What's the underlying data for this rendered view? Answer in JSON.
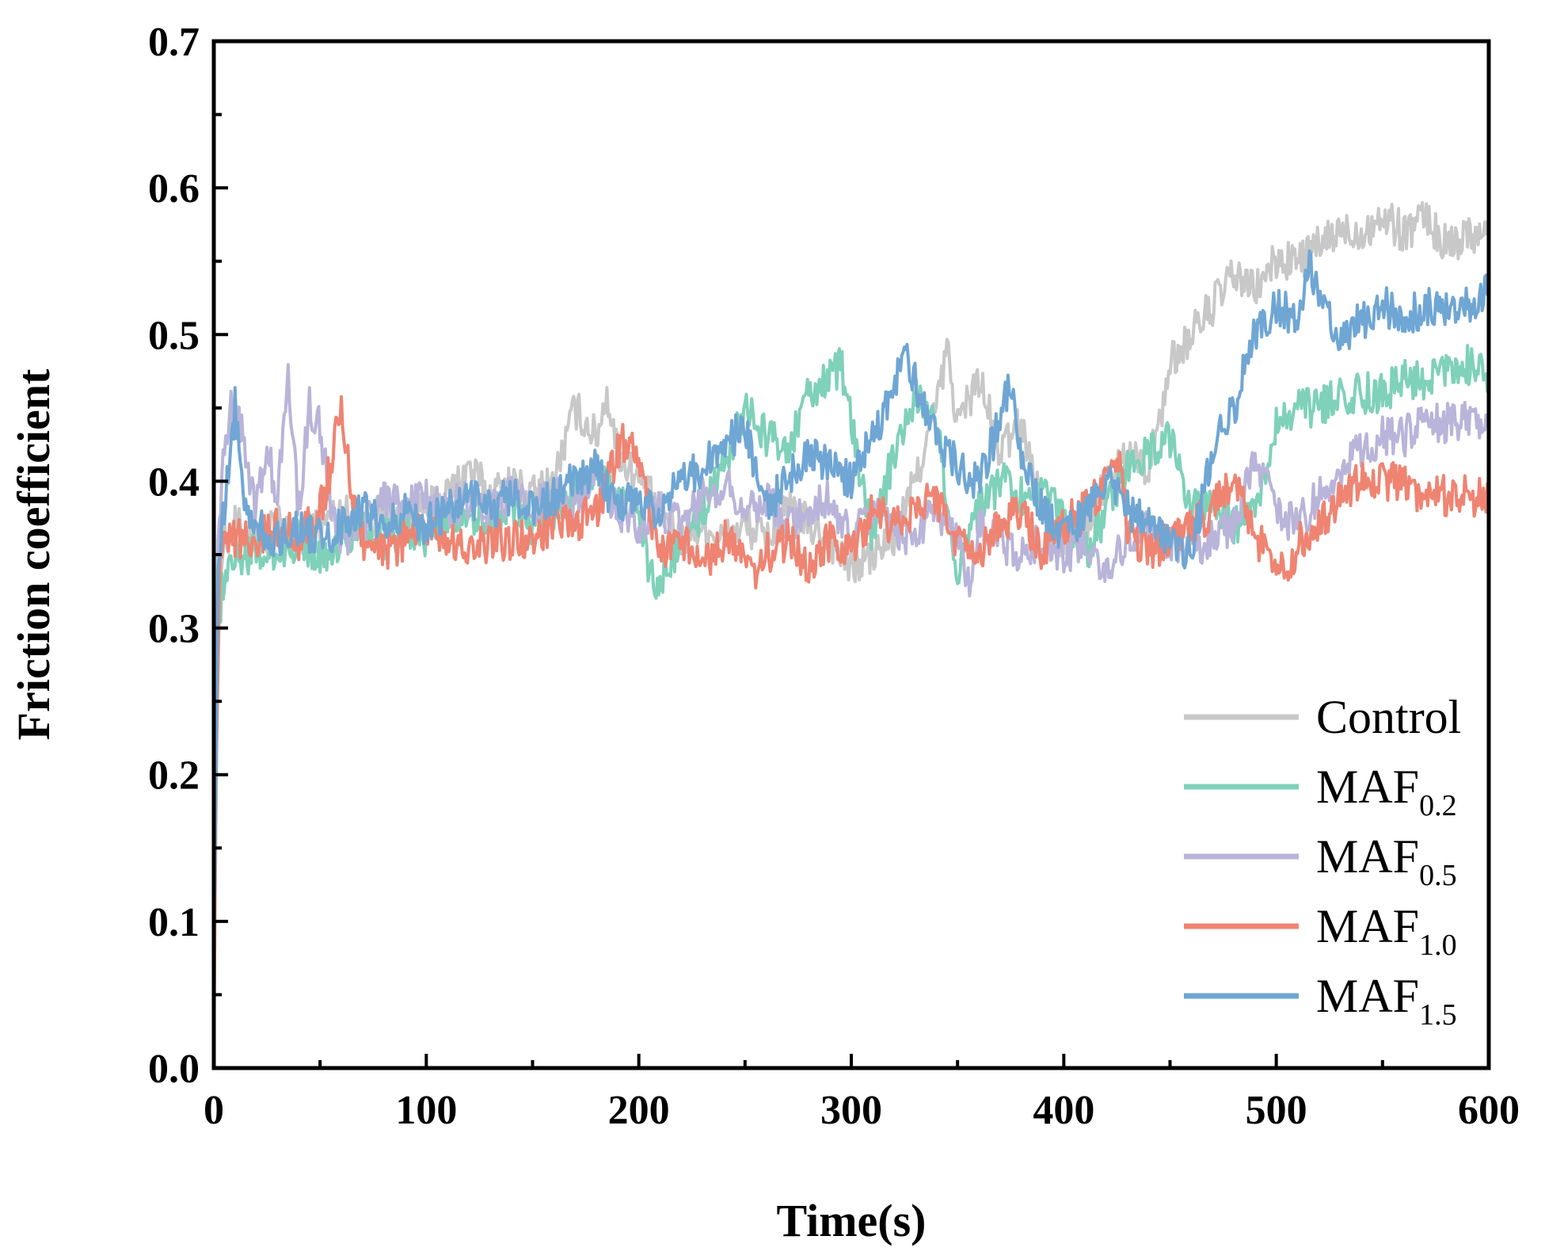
{
  "chart_data": {
    "type": "line",
    "title": "",
    "xlabel": "Time(s)",
    "ylabel": "Friction coefficient",
    "xlim": [
      0,
      600
    ],
    "ylim": [
      0,
      0.7
    ],
    "x_ticks": [
      0,
      100,
      200,
      300,
      400,
      500,
      600
    ],
    "x_tick_labels": [
      "0",
      "100",
      "200",
      "300",
      "400",
      "500",
      "600"
    ],
    "y_ticks": [
      0,
      0.1,
      0.2,
      0.3,
      0.4,
      0.5,
      0.6,
      0.7
    ],
    "y_tick_labels": [
      "0.0",
      "0.1",
      "0.2",
      "0.3",
      "0.4",
      "0.5",
      "0.6",
      "0.7"
    ],
    "grid": false,
    "legend_position": "bottom-right",
    "series": [
      {
        "name": "Control",
        "label_main": "Control",
        "label_sub": "",
        "color": "#c8c8c8",
        "x": [
          0,
          2,
          5,
          10,
          20,
          30,
          40,
          50,
          60,
          70,
          80,
          90,
          100,
          110,
          120,
          130,
          140,
          150,
          160,
          170,
          180,
          185,
          190,
          200,
          210,
          220,
          230,
          240,
          250,
          260,
          270,
          280,
          290,
          300,
          310,
          320,
          330,
          340,
          345,
          350,
          360,
          370,
          380,
          390,
          400,
          410,
          420,
          430,
          440,
          445,
          450,
          460,
          470,
          480,
          490,
          500,
          510,
          520,
          530,
          540,
          550,
          560,
          570,
          580,
          590,
          600
        ],
        "y": [
          0.02,
          0.33,
          0.36,
          0.37,
          0.36,
          0.37,
          0.36,
          0.37,
          0.38,
          0.37,
          0.38,
          0.37,
          0.38,
          0.39,
          0.41,
          0.39,
          0.4,
          0.39,
          0.4,
          0.45,
          0.43,
          0.46,
          0.42,
          0.4,
          0.38,
          0.36,
          0.37,
          0.36,
          0.37,
          0.36,
          0.38,
          0.37,
          0.36,
          0.34,
          0.35,
          0.36,
          0.4,
          0.45,
          0.49,
          0.44,
          0.47,
          0.42,
          0.44,
          0.38,
          0.36,
          0.37,
          0.4,
          0.42,
          0.41,
          0.44,
          0.48,
          0.5,
          0.52,
          0.54,
          0.53,
          0.55,
          0.55,
          0.56,
          0.57,
          0.57,
          0.58,
          0.57,
          0.58,
          0.56,
          0.57,
          0.57
        ]
      },
      {
        "name": "MAF0.2",
        "label_main": "MAF",
        "label_sub": "0.2",
        "color": "#7fd1b9",
        "x": [
          0,
          2,
          5,
          10,
          20,
          30,
          40,
          50,
          60,
          70,
          80,
          90,
          100,
          110,
          120,
          130,
          140,
          150,
          160,
          170,
          180,
          190,
          200,
          205,
          210,
          220,
          230,
          240,
          250,
          260,
          270,
          280,
          290,
          295,
          300,
          310,
          320,
          330,
          340,
          350,
          360,
          370,
          380,
          390,
          400,
          410,
          420,
          430,
          440,
          450,
          460,
          470,
          480,
          490,
          500,
          510,
          520,
          530,
          540,
          550,
          560,
          570,
          580,
          590,
          600
        ],
        "y": [
          0.05,
          0.3,
          0.34,
          0.35,
          0.35,
          0.35,
          0.36,
          0.35,
          0.36,
          0.37,
          0.36,
          0.37,
          0.36,
          0.37,
          0.38,
          0.37,
          0.38,
          0.37,
          0.38,
          0.39,
          0.4,
          0.39,
          0.38,
          0.34,
          0.33,
          0.36,
          0.38,
          0.41,
          0.45,
          0.43,
          0.42,
          0.46,
          0.47,
          0.48,
          0.44,
          0.36,
          0.42,
          0.46,
          0.44,
          0.34,
          0.38,
          0.4,
          0.39,
          0.4,
          0.37,
          0.35,
          0.38,
          0.41,
          0.42,
          0.43,
          0.38,
          0.39,
          0.37,
          0.38,
          0.44,
          0.45,
          0.45,
          0.46,
          0.46,
          0.46,
          0.47,
          0.47,
          0.48,
          0.48,
          0.47
        ]
      },
      {
        "name": "MAF0.5",
        "label_main": "MAF",
        "label_sub": "0.5",
        "color": "#b9b4d9",
        "x": [
          0,
          2,
          5,
          10,
          15,
          20,
          25,
          30,
          35,
          40,
          45,
          50,
          55,
          60,
          70,
          80,
          90,
          100,
          110,
          120,
          130,
          140,
          150,
          160,
          170,
          180,
          190,
          200,
          210,
          220,
          230,
          240,
          250,
          260,
          270,
          280,
          290,
          300,
          310,
          320,
          330,
          340,
          350,
          355,
          360,
          370,
          380,
          390,
          400,
          410,
          420,
          430,
          440,
          450,
          460,
          470,
          480,
          490,
          500,
          510,
          520,
          530,
          540,
          550,
          560,
          570,
          580,
          590,
          600
        ],
        "y": [
          0.1,
          0.36,
          0.43,
          0.46,
          0.42,
          0.38,
          0.42,
          0.39,
          0.47,
          0.38,
          0.45,
          0.44,
          0.38,
          0.36,
          0.37,
          0.39,
          0.38,
          0.39,
          0.38,
          0.39,
          0.38,
          0.39,
          0.38,
          0.39,
          0.38,
          0.41,
          0.38,
          0.37,
          0.38,
          0.37,
          0.39,
          0.4,
          0.38,
          0.39,
          0.37,
          0.38,
          0.39,
          0.36,
          0.38,
          0.37,
          0.36,
          0.38,
          0.36,
          0.33,
          0.37,
          0.36,
          0.35,
          0.36,
          0.35,
          0.36,
          0.34,
          0.36,
          0.37,
          0.36,
          0.35,
          0.36,
          0.37,
          0.42,
          0.38,
          0.37,
          0.39,
          0.41,
          0.42,
          0.43,
          0.43,
          0.44,
          0.44,
          0.44,
          0.44
        ]
      },
      {
        "name": "MAF1.0",
        "label_main": "MAF",
        "label_sub": "1.0",
        "color": "#ef8472",
        "x": [
          0,
          1,
          3,
          5,
          10,
          20,
          30,
          40,
          50,
          55,
          60,
          65,
          70,
          80,
          90,
          100,
          110,
          120,
          130,
          140,
          150,
          160,
          170,
          180,
          190,
          195,
          200,
          210,
          220,
          230,
          240,
          250,
          255,
          260,
          270,
          280,
          290,
          300,
          310,
          320,
          330,
          340,
          350,
          360,
          370,
          380,
          390,
          400,
          410,
          420,
          425,
          430,
          440,
          450,
          460,
          470,
          480,
          490,
          500,
          505,
          510,
          520,
          530,
          540,
          550,
          560,
          570,
          580,
          590,
          600
        ],
        "y": [
          0.0,
          0.2,
          0.35,
          0.37,
          0.36,
          0.36,
          0.37,
          0.36,
          0.38,
          0.41,
          0.45,
          0.39,
          0.36,
          0.35,
          0.36,
          0.37,
          0.36,
          0.35,
          0.36,
          0.36,
          0.36,
          0.37,
          0.37,
          0.38,
          0.42,
          0.43,
          0.41,
          0.35,
          0.36,
          0.34,
          0.36,
          0.35,
          0.33,
          0.35,
          0.36,
          0.34,
          0.36,
          0.35,
          0.38,
          0.37,
          0.38,
          0.39,
          0.36,
          0.35,
          0.37,
          0.38,
          0.35,
          0.37,
          0.38,
          0.4,
          0.42,
          0.37,
          0.35,
          0.36,
          0.37,
          0.38,
          0.4,
          0.36,
          0.35,
          0.33,
          0.36,
          0.37,
          0.39,
          0.4,
          0.4,
          0.4,
          0.39,
          0.39,
          0.39,
          0.39
        ]
      },
      {
        "name": "MAF1.5",
        "label_main": "MAF",
        "label_sub": "1.5",
        "color": "#6fa6d4",
        "x": [
          0,
          2,
          5,
          10,
          15,
          20,
          30,
          40,
          50,
          60,
          70,
          80,
          90,
          100,
          110,
          120,
          130,
          140,
          150,
          160,
          170,
          180,
          190,
          200,
          210,
          220,
          230,
          240,
          250,
          260,
          270,
          280,
          290,
          300,
          310,
          320,
          325,
          330,
          340,
          350,
          360,
          370,
          375,
          380,
          390,
          400,
          410,
          420,
          430,
          440,
          450,
          460,
          470,
          480,
          490,
          500,
          510,
          515,
          520,
          530,
          540,
          550,
          560,
          570,
          580,
          590,
          600
        ],
        "y": [
          0.08,
          0.34,
          0.38,
          0.45,
          0.38,
          0.37,
          0.36,
          0.37,
          0.36,
          0.37,
          0.38,
          0.37,
          0.38,
          0.37,
          0.38,
          0.39,
          0.38,
          0.39,
          0.38,
          0.39,
          0.4,
          0.41,
          0.38,
          0.39,
          0.38,
          0.4,
          0.41,
          0.42,
          0.44,
          0.38,
          0.4,
          0.42,
          0.41,
          0.4,
          0.43,
          0.46,
          0.49,
          0.47,
          0.43,
          0.41,
          0.4,
          0.44,
          0.47,
          0.42,
          0.38,
          0.36,
          0.38,
          0.4,
          0.38,
          0.37,
          0.36,
          0.35,
          0.42,
          0.45,
          0.5,
          0.52,
          0.51,
          0.55,
          0.53,
          0.5,
          0.51,
          0.52,
          0.51,
          0.52,
          0.52,
          0.52,
          0.53
        ]
      }
    ]
  }
}
